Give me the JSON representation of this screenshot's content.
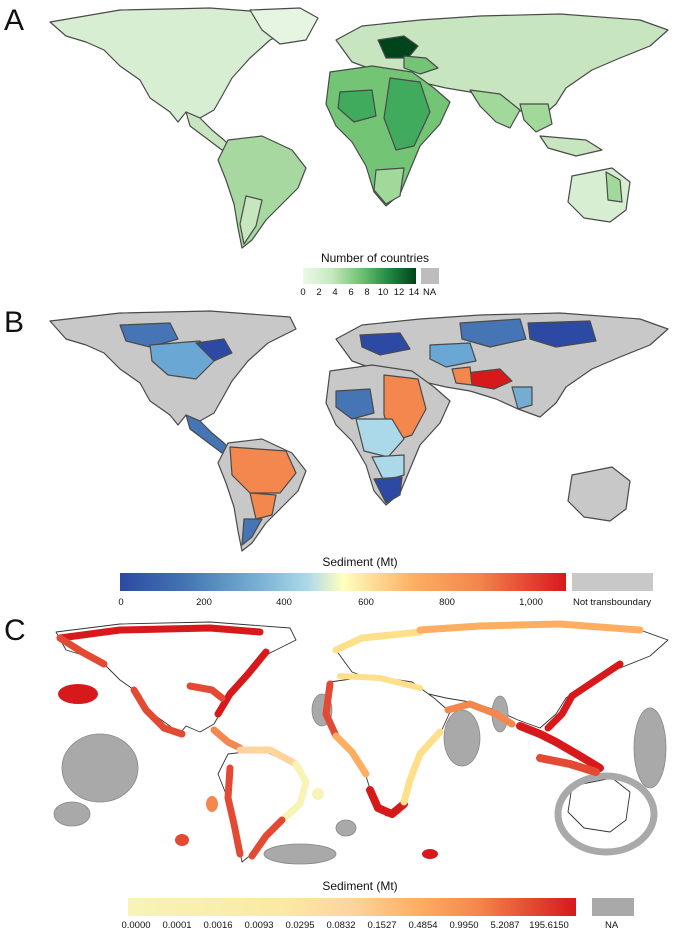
{
  "panels": {
    "a": {
      "label": "A",
      "legend": {
        "title": "Number of countries",
        "ticks": [
          "0",
          "2",
          "4",
          "6",
          "8",
          "10",
          "12",
          "14"
        ],
        "na": "NA",
        "colors": {
          "low": "#edf8e9",
          "mid": "#4cae62",
          "high": "#00441b",
          "na": "#bdbdbd"
        }
      }
    },
    "b": {
      "label": "B",
      "legend": {
        "title": "Sediment (Mt)",
        "ticks": [
          "0",
          "200",
          "400",
          "600",
          "800",
          "1,000"
        ],
        "na": "Not transboundary",
        "colors": {
          "na": "#c8c8c8",
          "high": "#d7191c",
          "orange": "#f4874d",
          "light": "#abd9e9",
          "low": "#2c4aa3"
        }
      }
    },
    "c": {
      "label": "C",
      "legend": {
        "title": "Sediment (Mt)",
        "ticks": [
          "0.0000",
          "0.0001",
          "0.0016",
          "0.0093",
          "0.0295",
          "0.0832",
          "0.1527",
          "0.4854",
          "0.9950",
          "5.2087",
          "195.6150"
        ],
        "na": "NA",
        "colors": {
          "low": "#f7f4b6",
          "high": "#d7191c",
          "na": "#a9a9a9"
        }
      }
    }
  }
}
